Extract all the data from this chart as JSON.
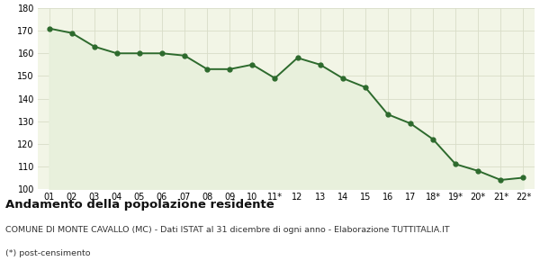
{
  "x_labels": [
    "01",
    "02",
    "03",
    "04",
    "05",
    "06",
    "07",
    "08",
    "09",
    "10",
    "11*",
    "12",
    "13",
    "14",
    "15",
    "16",
    "17",
    "18*",
    "19*",
    "20*",
    "21*",
    "22*"
  ],
  "y_values": [
    171,
    169,
    163,
    160,
    160,
    160,
    159,
    153,
    153,
    155,
    149,
    158,
    155,
    149,
    145,
    133,
    129,
    122,
    111,
    108,
    104,
    105
  ],
  "ylim": [
    100,
    180
  ],
  "yticks": [
    100,
    110,
    120,
    130,
    140,
    150,
    160,
    170,
    180
  ],
  "line_color": "#2d6a2d",
  "fill_color": "#e8f0dc",
  "marker": "o",
  "marker_size": 3.5,
  "line_width": 1.4,
  "bg_color": "#ffffff",
  "plot_bg_color": "#f2f5e6",
  "grid_color": "#d8dcc8",
  "title": "Andamento della popolazione residente",
  "subtitle": "COMUNE DI MONTE CAVALLO (MC) - Dati ISTAT al 31 dicembre di ogni anno - Elaborazione TUTTITALIA.IT",
  "footnote": "(*) post-censimento",
  "title_fontsize": 9.5,
  "subtitle_fontsize": 6.8,
  "footnote_fontsize": 6.8
}
